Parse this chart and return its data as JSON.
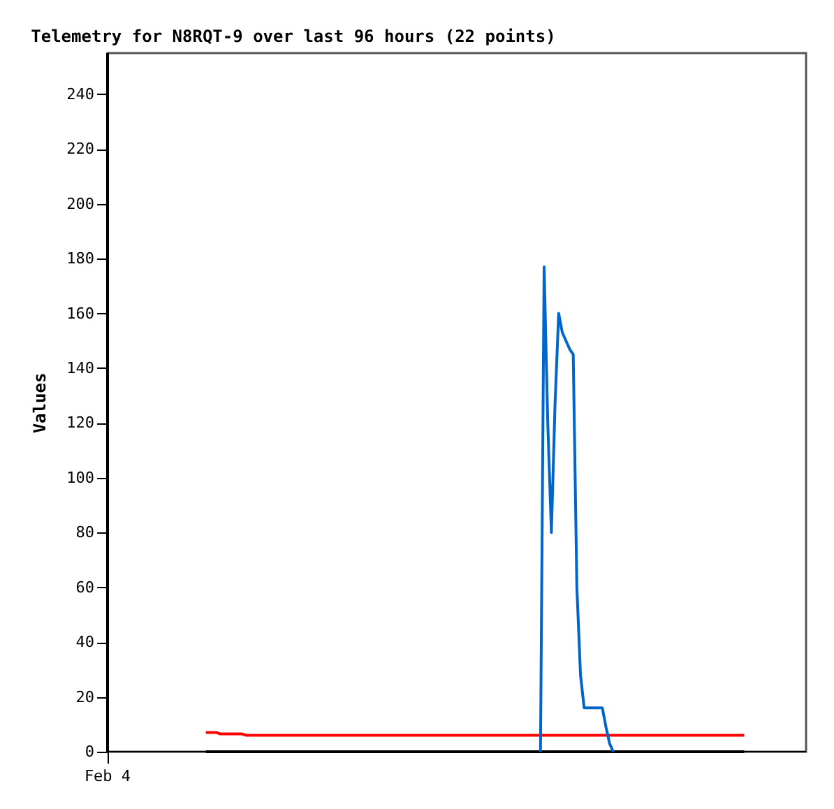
{
  "chart_data": {
    "type": "line",
    "title": "Telemetry for N8RQT-9 over last 96 hours (22 points)",
    "ylabel": "Values",
    "annotations": [
      "Feb 4"
    ],
    "categories": [
      null,
      null,
      null,
      null,
      null,
      null,
      null,
      null,
      null,
      null,
      null,
      null,
      null,
      null,
      null,
      null,
      null,
      null,
      null,
      null,
      null,
      null,
      null,
      null,
      null,
      null,
      null,
      null,
      null,
      null,
      null,
      null,
      null,
      null,
      null,
      null,
      null,
      null,
      null,
      null,
      null,
      null,
      null,
      null,
      null,
      null,
      null,
      null,
      null,
      null,
      null,
      null,
      null,
      null,
      null,
      null,
      null,
      null,
      null,
      null,
      null,
      null,
      null,
      null,
      null,
      null,
      null,
      null,
      null,
      null,
      null,
      null,
      null,
      null,
      null,
      null,
      null,
      null,
      null,
      null,
      null,
      null,
      null,
      null,
      null,
      null,
      null,
      null,
      null,
      null,
      null,
      null,
      null,
      null,
      null,
      null,
      null,
      null,
      null,
      null,
      null,
      null,
      null,
      null,
      null,
      null,
      null,
      null,
      null,
      null,
      null,
      null,
      null,
      null,
      null,
      null,
      null,
      null,
      null,
      null,
      null,
      null,
      null,
      null,
      null,
      null,
      null,
      null,
      null,
      null,
      null,
      null,
      null,
      null,
      null,
      null,
      null,
      null,
      null,
      null,
      null,
      null,
      null,
      null,
      null,
      null,
      null,
      null,
      null,
      null,
      null,
      null,
      null,
      null,
      null,
      null,
      null,
      null,
      null,
      null,
      null,
      null,
      null,
      null,
      null,
      null,
      null,
      null,
      null,
      null,
      null,
      null,
      null,
      null,
      null,
      null,
      null,
      null,
      null,
      null,
      null,
      null,
      null,
      null,
      null,
      null,
      null,
      null,
      null,
      null,
      null,
      null,
      null
    ],
    "ylim": [
      0,
      255
    ],
    "yticks": [
      0,
      20,
      40,
      60,
      80,
      100,
      120,
      140,
      160,
      180,
      200,
      220,
      240
    ],
    "grid": false,
    "series": [
      {
        "color": "#ff0000",
        "values": [
          null,
          null,
          null,
          null,
          null,
          null,
          null,
          null,
          null,
          null,
          null,
          null,
          null,
          null,
          null,
          null,
          null,
          null,
          null,
          null,
          null,
          null,
          null,
          null,
          null,
          null,
          null,
          7,
          null,
          null,
          7,
          6.5,
          null,
          null,
          null,
          null,
          null,
          6.5,
          6,
          null,
          null,
          null,
          null,
          null,
          null,
          null,
          null,
          null,
          null,
          null,
          null,
          null,
          null,
          null,
          null,
          null,
          null,
          null,
          null,
          null,
          null,
          null,
          null,
          null,
          null,
          null,
          null,
          null,
          null,
          null,
          null,
          null,
          null,
          null,
          null,
          null,
          null,
          null,
          null,
          null,
          null,
          null,
          null,
          null,
          null,
          null,
          null,
          null,
          null,
          null,
          null,
          null,
          null,
          null,
          null,
          null,
          null,
          null,
          null,
          null,
          null,
          null,
          null,
          null,
          null,
          null,
          null,
          null,
          null,
          null,
          null,
          null,
          null,
          null,
          null,
          null,
          null,
          null,
          null,
          null,
          null,
          null,
          null,
          null,
          null,
          null,
          null,
          null,
          null,
          null,
          null,
          null,
          null,
          null,
          null,
          null,
          null,
          null,
          null,
          null,
          null,
          null,
          null,
          null,
          null,
          null,
          null,
          null,
          null,
          null,
          null,
          null,
          null,
          null,
          null,
          null,
          null,
          null,
          null,
          null,
          null,
          null,
          null,
          null,
          null,
          null,
          null,
          null,
          null,
          null,
          null,
          null,
          null,
          null,
          null,
          6,
          null,
          null,
          null,
          null,
          null,
          null,
          null,
          null,
          null,
          null,
          null,
          null,
          null,
          null,
          null,
          null,
          null
        ]
      },
      {
        "color": "#000000",
        "values": [
          null,
          null,
          null,
          null,
          null,
          null,
          null,
          null,
          null,
          null,
          null,
          null,
          null,
          null,
          null,
          null,
          null,
          null,
          null,
          null,
          null,
          null,
          null,
          null,
          null,
          null,
          null,
          0,
          null,
          null,
          null,
          null,
          null,
          null,
          null,
          null,
          null,
          null,
          null,
          null,
          null,
          null,
          null,
          null,
          null,
          null,
          null,
          null,
          null,
          null,
          null,
          null,
          null,
          null,
          null,
          null,
          null,
          null,
          null,
          null,
          null,
          null,
          null,
          null,
          null,
          null,
          null,
          null,
          null,
          null,
          null,
          null,
          null,
          null,
          null,
          null,
          null,
          null,
          null,
          null,
          null,
          null,
          null,
          null,
          null,
          null,
          null,
          null,
          null,
          null,
          null,
          null,
          null,
          null,
          null,
          null,
          null,
          null,
          null,
          null,
          null,
          null,
          null,
          null,
          null,
          null,
          null,
          null,
          null,
          null,
          null,
          null,
          null,
          null,
          null,
          null,
          null,
          null,
          null,
          null,
          null,
          null,
          null,
          null,
          null,
          null,
          null,
          null,
          null,
          null,
          null,
          null,
          null,
          null,
          null,
          null,
          null,
          null,
          null,
          null,
          null,
          null,
          null,
          null,
          null,
          null,
          null,
          null,
          null,
          null,
          null,
          null,
          null,
          null,
          null,
          null,
          null,
          null,
          null,
          null,
          null,
          null,
          null,
          null,
          null,
          null,
          null,
          null,
          null,
          null,
          null,
          null,
          null,
          null,
          null,
          0,
          null,
          null,
          null,
          null,
          null,
          null,
          null,
          null,
          null,
          null,
          null,
          null,
          null,
          null,
          null,
          null,
          null
        ]
      },
      {
        "color": "#0066cc",
        "values": [
          null,
          null,
          null,
          null,
          null,
          null,
          null,
          null,
          null,
          null,
          null,
          null,
          null,
          null,
          null,
          null,
          null,
          null,
          null,
          null,
          null,
          null,
          null,
          null,
          null,
          null,
          null,
          null,
          null,
          null,
          null,
          null,
          null,
          null,
          null,
          null,
          null,
          null,
          null,
          null,
          null,
          null,
          null,
          null,
          null,
          null,
          null,
          null,
          null,
          null,
          null,
          null,
          null,
          null,
          null,
          null,
          null,
          null,
          null,
          null,
          null,
          null,
          null,
          null,
          null,
          null,
          null,
          null,
          null,
          null,
          null,
          null,
          null,
          null,
          null,
          null,
          null,
          null,
          null,
          null,
          null,
          null,
          null,
          null,
          null,
          null,
          null,
          null,
          null,
          null,
          null,
          null,
          null,
          null,
          null,
          null,
          null,
          null,
          null,
          null,
          null,
          null,
          null,
          null,
          null,
          null,
          null,
          null,
          null,
          null,
          null,
          null,
          null,
          null,
          null,
          null,
          null,
          null,
          null,
          0,
          177,
          120,
          80,
          127,
          160,
          153,
          150,
          147,
          145,
          60,
          28,
          16,
          16,
          16,
          16,
          16,
          16,
          9,
          3,
          0,
          null,
          null,
          null,
          null,
          null,
          null,
          null,
          null,
          null,
          null,
          null,
          null,
          null,
          null,
          null,
          null,
          null,
          null,
          null,
          null,
          null,
          null,
          null,
          null,
          null,
          null,
          null,
          null,
          null,
          null,
          null,
          null,
          null,
          null,
          null,
          null,
          null,
          null,
          null,
          null,
          null,
          null,
          null,
          null,
          null,
          null,
          null,
          null,
          null,
          null,
          null,
          null,
          null
        ]
      }
    ]
  }
}
